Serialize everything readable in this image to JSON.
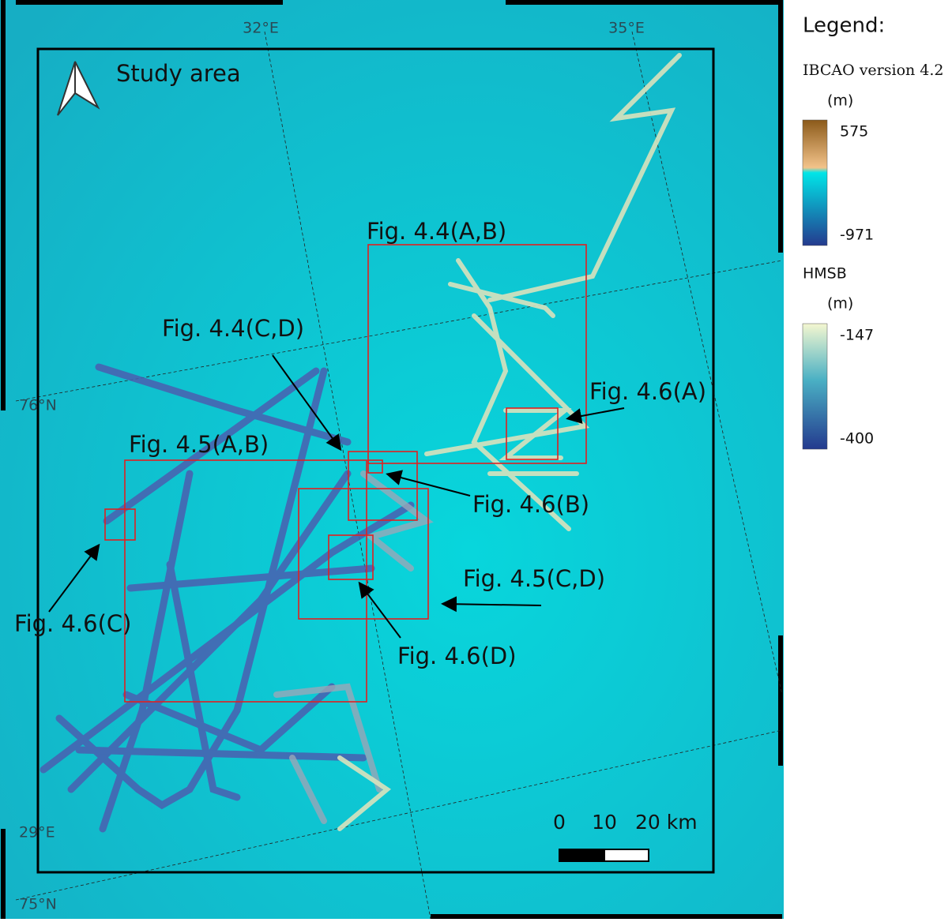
{
  "map": {
    "graticule": {
      "lon": [
        "32°E",
        "35°E",
        "29°E"
      ],
      "lat": [
        "76°N",
        "75°N"
      ]
    },
    "title": "Study area",
    "figure_labels": [
      "Fig. 4.4(A,B)",
      "Fig. 4.4(C,D)",
      "Fig. 4.5(A,B)",
      "Fig. 4.5(C,D)",
      "Fig. 4.6(A)",
      "Fig. 4.6(B)",
      "Fig. 4.6(C)",
      "Fig. 4.6(D)"
    ],
    "scale_bar": {
      "labels": [
        "0",
        "10",
        "20 km"
      ]
    },
    "legend": {
      "heading": "Legend:",
      "layers": [
        {
          "name": "IBCAO version 4.2",
          "unit": "(m)",
          "max": 575,
          "min": -971
        },
        {
          "name": "HMSB",
          "unit": "(m)",
          "max": -147,
          "min": -400
        }
      ]
    }
  }
}
